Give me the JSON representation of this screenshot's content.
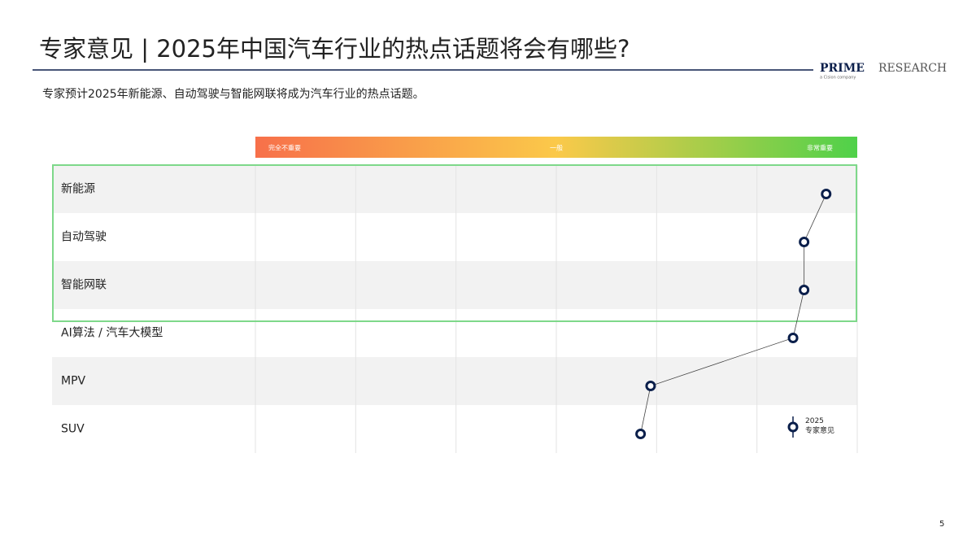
{
  "page": {
    "logo_main": "PRIME",
    "logo_second": "RESEARCH",
    "logo_tagline": "a Cision company",
    "page_number": "5"
  },
  "chart_data": {
    "type": "dot-line",
    "title": "专家意见 | 2025年中国汽车行业的热点话题将会有哪些?",
    "subtitle": "专家预计2025年新能源、自动驾驶与智能网联将成为汽车行业的热点话题。",
    "categories": [
      "新能源",
      "自动驾驶",
      "智能网联",
      "AI算法 / 汽车大模型",
      "MPV",
      "SUV"
    ],
    "series": [
      {
        "name": "2025\n专家意见",
        "color": "#0b1f4b",
        "values": [
          5.69,
          5.47,
          5.47,
          5.36,
          3.94,
          3.84
        ]
      }
    ],
    "xlim": [
      0,
      6
    ],
    "xticks": [
      {
        "value": 0,
        "label": "完全不重要"
      },
      {
        "value": 3,
        "label": "一般"
      },
      {
        "value": 6,
        "label": "非常重要"
      }
    ],
    "grid": true,
    "highlight_rows": 3,
    "scale_colors": [
      "#f7704a",
      "#fbc94a",
      "#4fd14a"
    ]
  }
}
